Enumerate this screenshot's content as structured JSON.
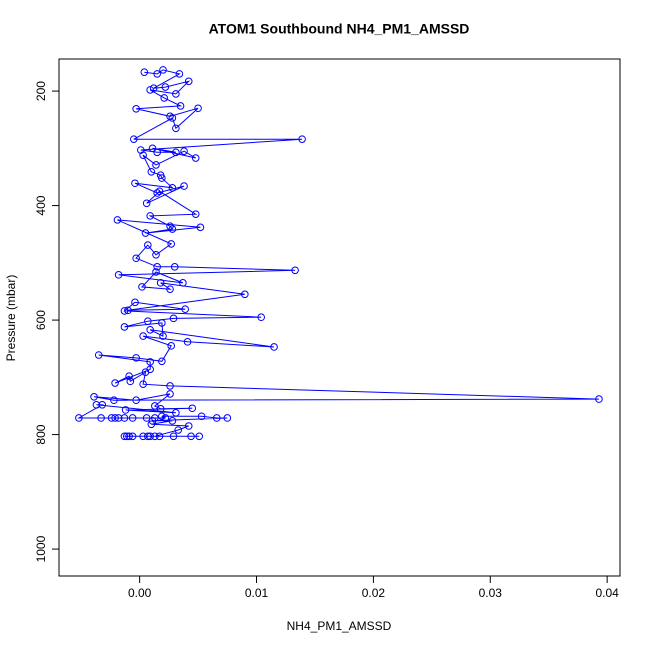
{
  "chart_data": {
    "type": "line",
    "title": "ATOM1 Southbound NH4_PM1_AMSSD",
    "x_label": "NH4_PM1_AMSSD",
    "y_label": "Pressure (mbar)",
    "color": "#0000ff",
    "markers": true,
    "xlim": [
      -0.0069,
      0.0411
    ],
    "ylim": [
      1047,
      144
    ],
    "xticks": [
      {
        "value": 0,
        "label": "0.00"
      },
      0.01,
      0.02,
      0.03,
      0.04
    ],
    "yticks": [
      200,
      400,
      600,
      800,
      1000
    ],
    "x": [
      0.0004,
      0.0015,
      0.002,
      0.0034,
      0.0012,
      0.0022,
      0.0042,
      0.0031,
      0.0009,
      0.0021,
      0.0035,
      -0.0003,
      0.0026,
      0.005,
      0.0031,
      0.0028,
      -0.0005,
      0.0139,
      0.0001,
      0.0015,
      0.0031,
      0.0011,
      0.0048,
      0.0038,
      0.0014,
      0.0003,
      0.001,
      0.0018,
      0.0019,
      0.0028,
      -0.0004,
      0.0015,
      0.0038,
      0.0006,
      0.0017,
      0.0048,
      0.0009,
      0.0026,
      0.0028,
      0.0005,
      0.0052,
      -0.0019,
      0.0027,
      0.0014,
      0.0007,
      -0.0003,
      0.0015,
      0.003,
      0.0133,
      -0.0018,
      0.0037,
      0.0014,
      0.0002,
      0.0026,
      0.0018,
      0.009,
      -0.001,
      0.0039,
      -0.0004,
      -0.0013,
      0.0104,
      0.0029,
      0.0007,
      -0.0013,
      0.0019,
      0.002,
      0.0009,
      0.0115,
      0.0041,
      0.0003,
      0.0027,
      0.0019,
      -0.0003,
      -0.0035,
      0.0009,
      0.0009,
      -0.0021,
      -0.0009,
      -0.0008,
      0.0005,
      0.0003,
      0.0026,
      0.0393,
      -0.0022,
      -0.0039,
      -0.0003,
      0.0026,
      0.0013,
      0.0018,
      0.0045,
      -0.0012,
      0.0031,
      -0.0037,
      -0.0032,
      -0.0052,
      -0.0033,
      -0.0024,
      -0.0021,
      -0.0018,
      -0.0013,
      -0.0006,
      0.0006,
      0.0013,
      0.0022,
      0.0019,
      0.0053,
      0.0066,
      0.0075,
      0.0011,
      0.0028,
      0.001,
      0.0042,
      0.0033,
      0.0013,
      -0.0013,
      -0.0009,
      -0.0006,
      0.0003,
      0.0007,
      0.0009,
      0.0017,
      0.0029,
      0.0044,
      0.0051,
      -0.0011
    ],
    "values": [
      167,
      170,
      163,
      170,
      195,
      193,
      183,
      205,
      198,
      212,
      226,
      231,
      244,
      230,
      265,
      247,
      284,
      284,
      303,
      307,
      307,
      300,
      317,
      305,
      329,
      312,
      341,
      347,
      352,
      369,
      361,
      378,
      366,
      396,
      375,
      415,
      418,
      436,
      441,
      448,
      438,
      425,
      467,
      486,
      469,
      492,
      507,
      507,
      513,
      521,
      535,
      516,
      542,
      546,
      535,
      555,
      583,
      581,
      569,
      584,
      595,
      597,
      602,
      612,
      605,
      628,
      617,
      647,
      638,
      628,
      645,
      672,
      666,
      661,
      673,
      686,
      710,
      698,
      707,
      691,
      712,
      715,
      738,
      740,
      734,
      740,
      729,
      750,
      755,
      754,
      757,
      762,
      748,
      748,
      771,
      771,
      771,
      771,
      771,
      771,
      771,
      771,
      771,
      771,
      768,
      768,
      771,
      771,
      776,
      776,
      782,
      785,
      792,
      803,
      803,
      803,
      803,
      803,
      803,
      803,
      803,
      803,
      803,
      803,
      803
    ]
  }
}
